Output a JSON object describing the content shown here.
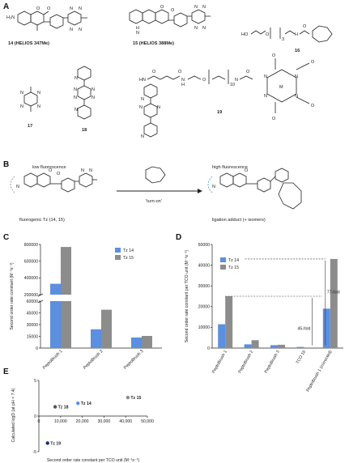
{
  "panels": {
    "a": "A",
    "b": "B",
    "c": "C",
    "d": "D",
    "e": "E"
  },
  "compounds": {
    "c14": "14 (HELIOS 347Me)",
    "c15": "15 (HELIOS 388Me)",
    "c16": "16",
    "c17": "17",
    "c18": "18",
    "c19": "19",
    "amine_label": "H₂N",
    "rep_n": "10",
    "rep_3": "3",
    "metal": "M"
  },
  "scheme": {
    "low": "low fluorescence",
    "high": "high fluorescence",
    "turn_on": "'turn-on'",
    "left_caption": "fluorogenic Tz (14, 15)",
    "right_caption": "ligation adduct (+ isomers)"
  },
  "colors": {
    "tz14": "#5b8fe0",
    "tz15": "#8c8c8c",
    "low": "#8a8a8a",
    "high": "#3b9bdc",
    "tz18": "#555555",
    "tz19": "#1b2a8a"
  },
  "chart_data": [
    {
      "type": "bar",
      "title": "",
      "ylabel": "Second order rate constant (M⁻¹s⁻¹)",
      "xlabel": "",
      "categories": [
        "PeptoBrush 1",
        "PeptoBrush 2",
        "PeptoBrush 3"
      ],
      "series": [
        {
          "name": "Tz 14",
          "values": [
            330000,
            24000,
            13500
          ]
        },
        {
          "name": "Tz 15",
          "values": [
            770000,
            49000,
            15500
          ]
        }
      ],
      "axis_break": {
        "lower": [
          0,
          60000
        ],
        "upper": [
          200000,
          800000
        ]
      },
      "yticks_lower": [
        "0",
        "15000",
        "30000",
        "45000",
        "60000"
      ],
      "yticks_upper": [
        "200000",
        "400000",
        "600000",
        "800000"
      ],
      "legend": "top-right"
    },
    {
      "type": "bar",
      "title": "",
      "ylabel": "Second order rate constant per TCO unit (M⁻¹s⁻¹)",
      "xlabel": "",
      "categories": [
        "PeptoBrush 1",
        "PeptoBrush 2",
        "PeptoBrush 3",
        "TCO 16",
        "PeptoBrush 1 (corrected)"
      ],
      "series": [
        {
          "name": "Tz 14",
          "values": [
            11500,
            1800,
            1400,
            550,
            19000
          ]
        },
        {
          "name": "Tz 15",
          "values": [
            25000,
            3800,
            1600,
            0,
            43000
          ]
        }
      ],
      "ylim": [
        0,
        50000
      ],
      "yticks": [
        "0",
        "10000",
        "20000",
        "30000",
        "40000",
        "50000"
      ],
      "annotations": [
        "45-fold",
        "77-fold"
      ],
      "legend": "top-left"
    },
    {
      "type": "scatter",
      "title": "",
      "xlabel": "Second order rate constant per TCO unit (M⁻¹s⁻¹)",
      "ylabel": "Calculated logD (at pH = 7.4)",
      "xlim": [
        0,
        50000
      ],
      "ylim": [
        -5,
        5
      ],
      "xticks": [
        "0",
        "10,000",
        "20,000",
        "30,000",
        "40,000",
        "50,000"
      ],
      "yticks": [
        "-5",
        "0",
        "5"
      ],
      "points": [
        {
          "label": "Tz 14",
          "x": 18000,
          "y": 1.8
        },
        {
          "label": "Tz 15",
          "x": 41000,
          "y": 2.6
        },
        {
          "label": "Tz 18",
          "x": 7500,
          "y": 1.3
        },
        {
          "label": "Tz 19",
          "x": 4000,
          "y": -3.8
        }
      ]
    }
  ]
}
